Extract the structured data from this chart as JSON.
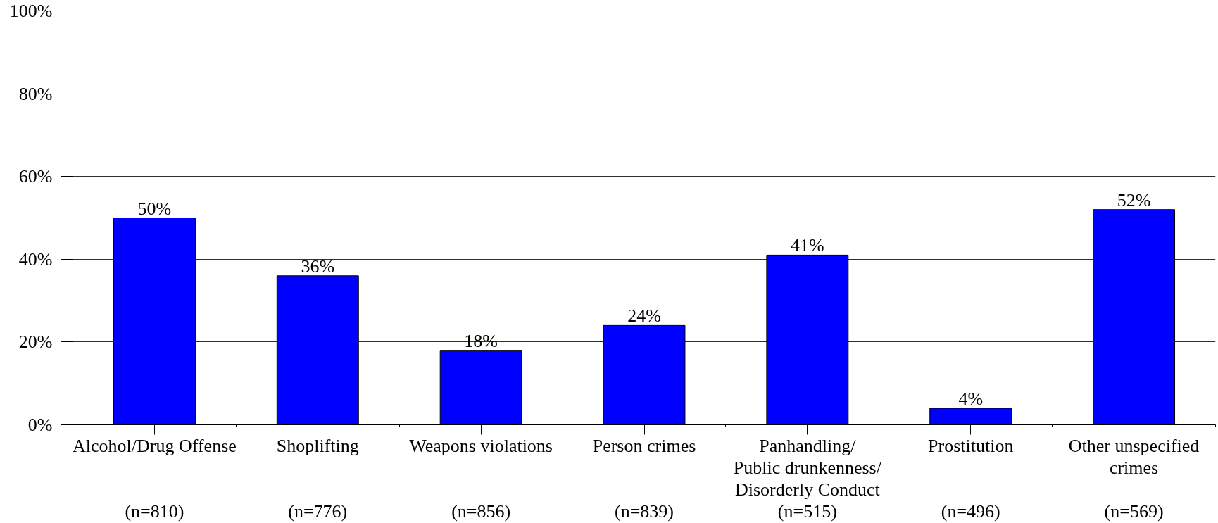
{
  "chart_data": {
    "type": "bar",
    "categories": [
      "Alcohol/Drug Offense\n\n\n(n=810)",
      "Shoplifting\n\n\n(n=776)",
      "Weapons violations\n\n\n(n=856)",
      "Person crimes\n\n\n(n=839)",
      "Panhandling/\nPublic drunkenness/\nDisorderly Conduct\n(n=515)",
      "Prostitution\n\n\n(n=496)",
      "Other unspecified\ncrimes\n\n(n=569)"
    ],
    "values": [
      50,
      36,
      18,
      24,
      41,
      4,
      52
    ],
    "value_labels": [
      "50%",
      "36%",
      "18%",
      "24%",
      "41%",
      "4%",
      "52%"
    ],
    "color": "#0000ff",
    "ylim": [
      0,
      100
    ],
    "yticks": [
      {
        "value": 0,
        "label": "0%"
      },
      {
        "value": 20,
        "label": "20%"
      },
      {
        "value": 40,
        "label": "40%"
      },
      {
        "value": 60,
        "label": "60%"
      },
      {
        "value": 80,
        "label": "80%"
      },
      {
        "value": 100,
        "label": "100%"
      }
    ],
    "grid": "y"
  }
}
